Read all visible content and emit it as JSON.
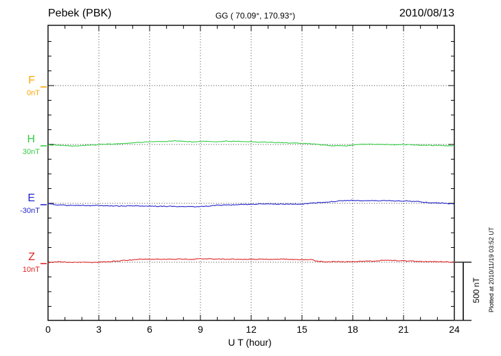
{
  "header": {
    "station": "Pebek (PBK)",
    "coordinates": "GG ( 70.09°, 170.93°)",
    "date": "2010/08/13"
  },
  "axis": {
    "x_label": "U T (hour)",
    "x_ticks": [
      "0",
      "3",
      "6",
      "9",
      "12",
      "15",
      "18",
      "21",
      "24"
    ]
  },
  "scale_bar": {
    "label": "500 nT",
    "value_nT": 500
  },
  "plot_note": "Plotted at 2010/11/19 03:52 UT",
  "chart_data": {
    "type": "line",
    "title": "Pebek (PBK)",
    "subtitle": "GG ( 70.09°, 170.93°)",
    "date": "2010/08/13",
    "xlabel": "U T (hour)",
    "x_range": [
      0,
      24
    ],
    "x_start_hour": 0,
    "x_step_hour": 0.5,
    "x_major_tick_hours": 3,
    "x_minor_tick_hours": 1,
    "grid": "dotted vertical lines every 3 h; dotted horizontal line at each channel baseline",
    "scale_bar_nT": 500,
    "series": [
      {
        "name": "F",
        "baseline_label": "0nT",
        "baseline_nT": 0,
        "color": "#FFA500",
        "values_nT": []
      },
      {
        "name": "H",
        "baseline_label": "30nT",
        "baseline_nT": 30,
        "color": "#33CC44",
        "values_nT": [
          27,
          24,
          21,
          16,
          21,
          24,
          30,
          33,
          36,
          39,
          45,
          50,
          53,
          56,
          56,
          62,
          56,
          53,
          56,
          59,
          53,
          59,
          56,
          56,
          53,
          50,
          50,
          47,
          45,
          42,
          39,
          36,
          30,
          21,
          18,
          18,
          24,
          33,
          33,
          30,
          30,
          27,
          30,
          27,
          24,
          24,
          21,
          21,
          18
        ]
      },
      {
        "name": "E",
        "baseline_label": "-30nT",
        "baseline_nT": -30,
        "color": "#2222CC",
        "values_nT": [
          -30,
          -42,
          -47,
          -47,
          -47,
          -50,
          -47,
          -50,
          -53,
          -53,
          -53,
          -53,
          -53,
          -56,
          -56,
          -56,
          -59,
          -59,
          -56,
          -53,
          -47,
          -45,
          -42,
          -39,
          -39,
          -36,
          -36,
          -36,
          -36,
          -36,
          -36,
          -30,
          -24,
          -18,
          -13,
          -7,
          -4,
          -7,
          -7,
          -7,
          -7,
          -10,
          -10,
          -13,
          -18,
          -24,
          -27,
          -30,
          -36
        ]
      },
      {
        "name": "Z",
        "baseline_label": "10nT",
        "baseline_nT": 10,
        "color": "#DD2222",
        "values_nT": [
          7,
          13,
          10,
          7,
          10,
          7,
          10,
          13,
          19,
          25,
          30,
          36,
          36,
          36,
          36,
          36,
          36,
          36,
          39,
          39,
          39,
          36,
          36,
          36,
          36,
          36,
          36,
          36,
          36,
          33,
          33,
          33,
          16,
          13,
          16,
          13,
          16,
          19,
          19,
          22,
          27,
          25,
          22,
          19,
          16,
          16,
          13,
          13,
          10
        ]
      }
    ]
  }
}
